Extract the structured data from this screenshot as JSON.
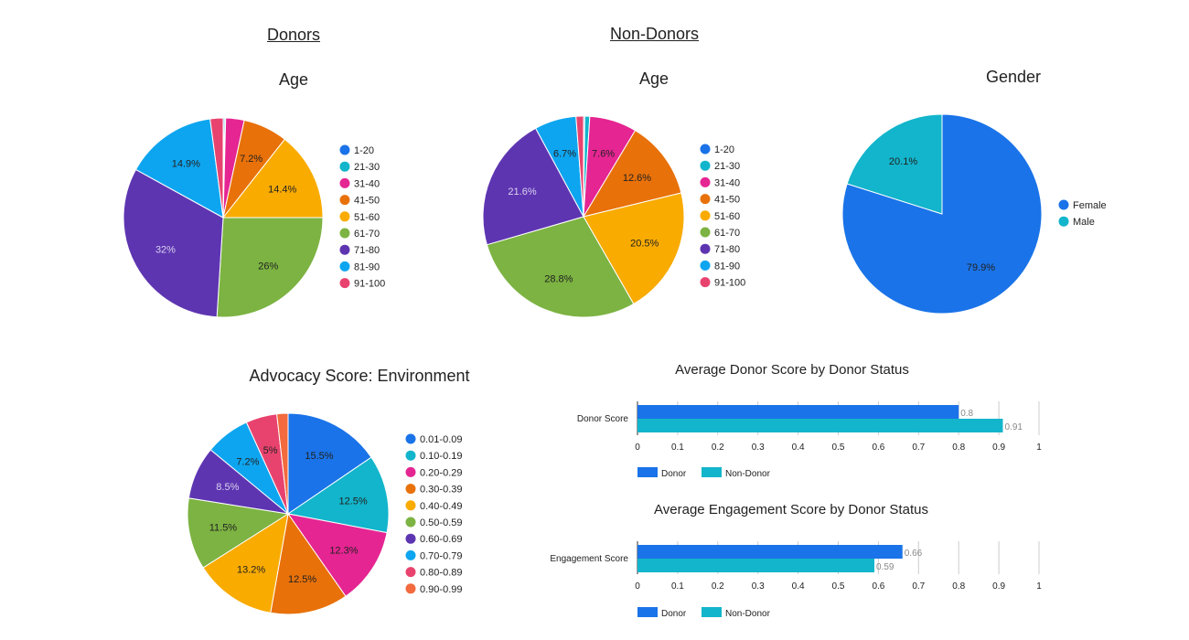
{
  "headings": {
    "donors": "Donors",
    "non_donors": "Non-Donors"
  },
  "chart_data": [
    {
      "id": "donor-age",
      "type": "pie",
      "title": "Age",
      "categories": [
        "1-20",
        "21-30",
        "31-40",
        "41-50",
        "51-60",
        "61-70",
        "71-80",
        "81-90",
        "91-100"
      ],
      "values": [
        0.2,
        0.2,
        3.0,
        7.2,
        14.4,
        26.0,
        32.0,
        14.9,
        2.1
      ],
      "labels": [
        "",
        "",
        "",
        "7.2%",
        "14.4%",
        "26%",
        "32%",
        "14.9%",
        ""
      ],
      "colors": [
        "#1a73e8",
        "#12b5cb",
        "#e52592",
        "#e8710a",
        "#f9ab00",
        "#7cb342",
        "#5e35b1",
        "#0ea5f0",
        "#e8436e"
      ],
      "legend": "right"
    },
    {
      "id": "nondonor-age",
      "type": "pie",
      "title": "Age",
      "categories": [
        "1-20",
        "21-30",
        "31-40",
        "41-50",
        "51-60",
        "61-70",
        "71-80",
        "81-90",
        "91-100"
      ],
      "values": [
        0.2,
        0.8,
        7.6,
        12.6,
        20.5,
        28.8,
        21.6,
        6.7,
        1.2
      ],
      "labels": [
        "",
        "",
        "7.6%",
        "12.6%",
        "20.5%",
        "28.8%",
        "21.6%",
        "6.7%",
        ""
      ],
      "colors": [
        "#1a73e8",
        "#12b5cb",
        "#e52592",
        "#e8710a",
        "#f9ab00",
        "#7cb342",
        "#5e35b1",
        "#0ea5f0",
        "#e8436e"
      ],
      "legend": "right"
    },
    {
      "id": "gender",
      "type": "pie",
      "title": "Gender",
      "categories": [
        "Female",
        "Male"
      ],
      "values": [
        79.9,
        20.1
      ],
      "labels": [
        "79.9%",
        "20.1%"
      ],
      "colors": [
        "#1a73e8",
        "#12b5cb"
      ],
      "legend": "right"
    },
    {
      "id": "advocacy",
      "type": "pie",
      "title": "Advocacy Score: Environment",
      "categories": [
        "0.01-0.09",
        "0.10-0.19",
        "0.20-0.29",
        "0.30-0.39",
        "0.40-0.49",
        "0.50-0.59",
        "0.60-0.69",
        "0.70-0.79",
        "0.80-0.89",
        "0.90-0.99"
      ],
      "values": [
        15.5,
        12.5,
        12.3,
        12.5,
        13.2,
        11.5,
        8.5,
        7.2,
        5.0,
        1.8
      ],
      "labels": [
        "15.5%",
        "12.5%",
        "12.3%",
        "12.5%",
        "13.2%",
        "11.5%",
        "8.5%",
        "7.2%",
        "5%",
        ""
      ],
      "colors": [
        "#1a73e8",
        "#12b5cb",
        "#e52592",
        "#e8710a",
        "#f9ab00",
        "#7cb342",
        "#5e35b1",
        "#0ea5f0",
        "#e8436e",
        "#f26a3d"
      ],
      "legend": "right"
    },
    {
      "id": "donor-score",
      "type": "bar",
      "orientation": "horizontal",
      "title": "Average Donor Score by Donor Status",
      "categories": [
        "Donor Score"
      ],
      "series": [
        {
          "name": "Donor",
          "values": [
            0.8
          ],
          "label": "0.8",
          "color": "#1a73e8"
        },
        {
          "name": "Non-Donor",
          "values": [
            0.91
          ],
          "label": "0.91",
          "color": "#12b5cb"
        }
      ],
      "xlim": [
        0,
        1
      ],
      "ticks": [
        "0",
        "0.1",
        "0.2",
        "0.3",
        "0.4",
        "0.5",
        "0.6",
        "0.7",
        "0.8",
        "0.9",
        "1"
      ],
      "legend": "bottom-left"
    },
    {
      "id": "engagement-score",
      "type": "bar",
      "orientation": "horizontal",
      "title": "Average Engagement Score by Donor Status",
      "categories": [
        "Engagement Score"
      ],
      "series": [
        {
          "name": "Donor",
          "values": [
            0.66
          ],
          "label": "0.66",
          "color": "#1a73e8"
        },
        {
          "name": "Non-Donor",
          "values": [
            0.59
          ],
          "label": "0.59",
          "color": "#12b5cb"
        }
      ],
      "xlim": [
        0,
        1
      ],
      "ticks": [
        "0",
        "0.1",
        "0.2",
        "0.3",
        "0.4",
        "0.5",
        "0.6",
        "0.7",
        "0.8",
        "0.9",
        "1"
      ],
      "legend": "bottom-left"
    }
  ]
}
